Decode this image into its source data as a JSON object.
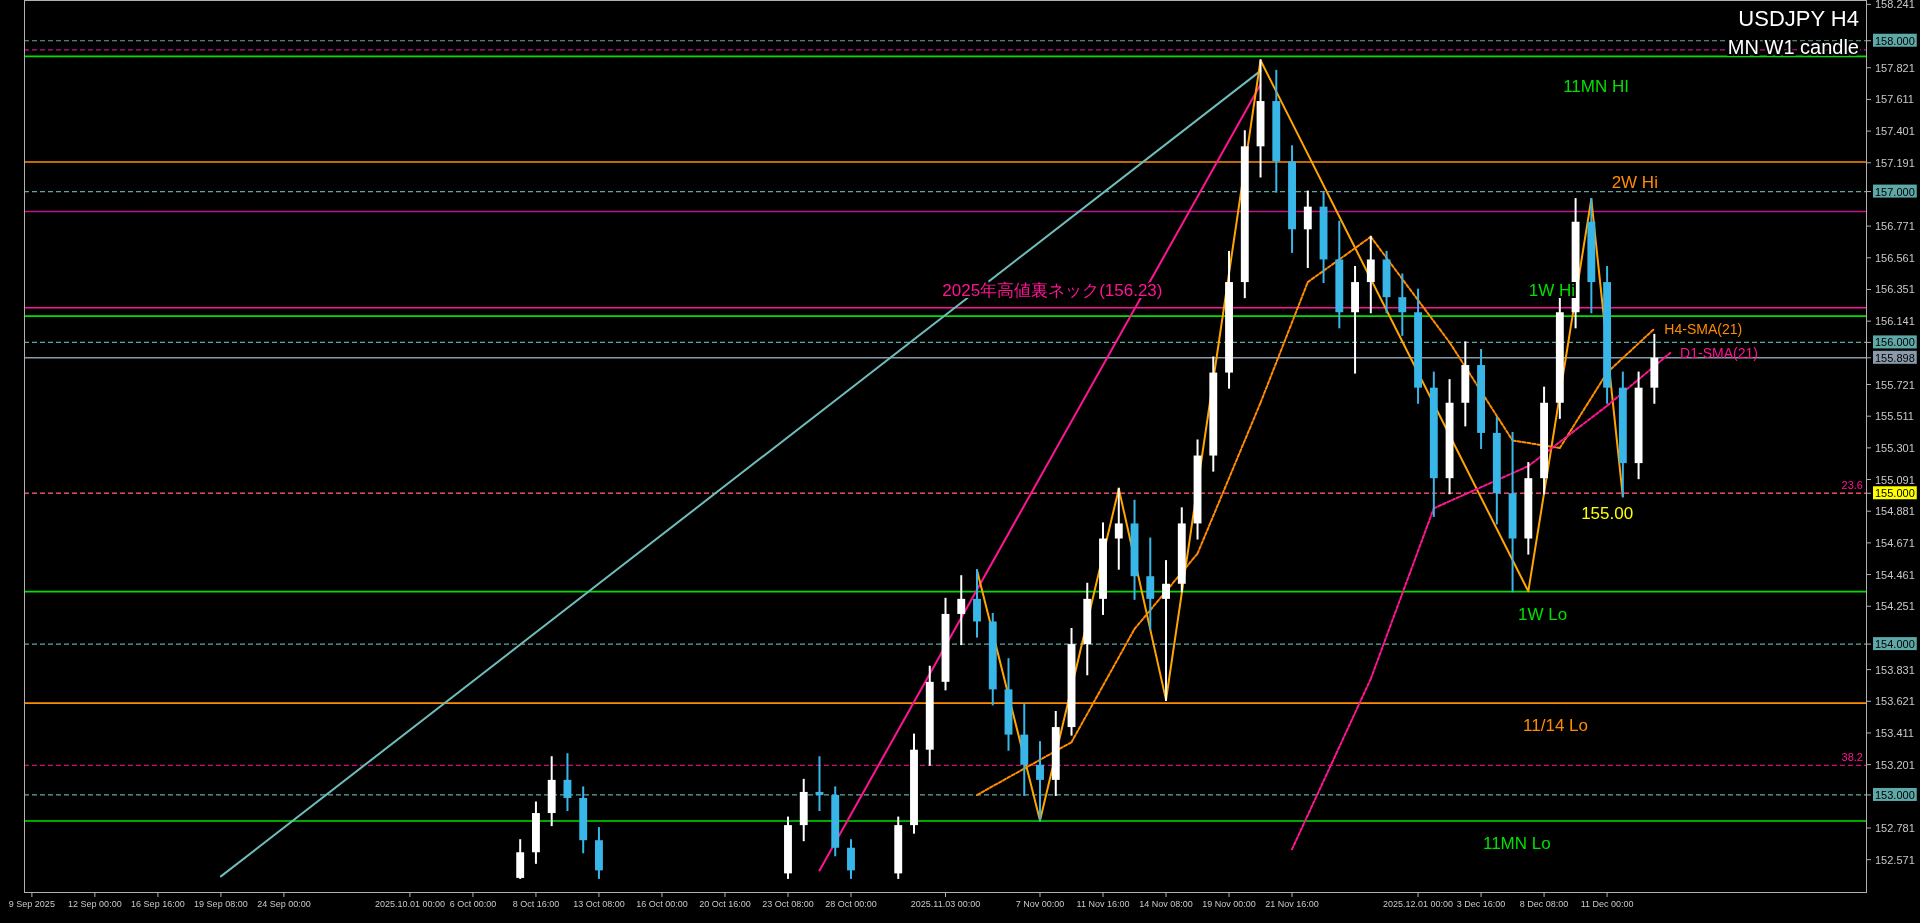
{
  "chart_data": {
    "type": "candlestick",
    "title": "USDJPY H4",
    "subtitle": "MN W1 candle",
    "categories": [
      "9 Sep 2025",
      null,
      null,
      null,
      "12 Sep 00:00",
      null,
      null,
      null,
      "16 Sep 16:00",
      null,
      null,
      null,
      "19 Sep 08:00",
      null,
      null,
      null,
      "24 Sep 00:00",
      null,
      null,
      null,
      null,
      null,
      null,
      null,
      "2025.10.01 00:00",
      null,
      null,
      null,
      "6 Oct 00:00",
      null,
      null,
      null,
      "8 Oct 16:00",
      null,
      null,
      null,
      "13 Oct 08:00",
      null,
      null,
      null,
      "16 Oct 00:00",
      null,
      null,
      null,
      "20 Oct 16:00",
      null,
      null,
      null,
      "23 Oct 08:00",
      null,
      null,
      null,
      "28 Oct 00:00",
      null,
      null,
      null,
      null,
      null,
      "2025.11.03 00:00",
      null,
      null,
      null,
      null,
      null,
      "7 Nov 00:00",
      null,
      null,
      null,
      "11 Nov 16:00",
      null,
      null,
      null,
      "14 Nov 08:00",
      null,
      null,
      null,
      "19 Nov 00:00",
      null,
      null,
      null,
      "21 Nov 16:00",
      null,
      null,
      null,
      null,
      null,
      null,
      null,
      "2025.12.01 00:00",
      null,
      null,
      null,
      "3 Dec 16:00",
      null,
      null,
      null,
      "8 Dec 08:00",
      null,
      null,
      null,
      "11 Dec 00:00",
      null,
      null,
      null,
      null,
      null,
      null,
      null,
      null,
      null,
      null,
      null,
      null,
      null,
      null,
      null,
      null
    ],
    "ohlc": [
      null,
      null,
      null,
      null,
      null,
      null,
      null,
      null,
      null,
      null,
      null,
      null,
      null,
      null,
      null,
      null,
      null,
      null,
      null,
      null,
      null,
      null,
      null,
      null,
      null,
      null,
      null,
      null,
      null,
      null,
      null,
      [
        152.45,
        152.7,
        152.45,
        152.62
      ],
      [
        152.62,
        152.95,
        152.55,
        152.88
      ],
      [
        152.88,
        153.25,
        152.8,
        153.1
      ],
      [
        153.1,
        153.27,
        152.9,
        152.98
      ],
      [
        152.98,
        153.05,
        152.62,
        152.7
      ],
      [
        152.7,
        152.78,
        152.45,
        152.5
      ],
      null,
      null,
      null,
      null,
      null,
      null,
      null,
      null,
      null,
      null,
      null,
      [
        152.48,
        152.85,
        152.45,
        152.8
      ],
      [
        152.8,
        153.1,
        152.7,
        153.02
      ],
      [
        153.02,
        153.25,
        152.9,
        153.0
      ],
      [
        153.0,
        153.05,
        152.6,
        152.65
      ],
      [
        152.65,
        152.7,
        152.45,
        152.5
      ],
      null,
      null,
      [
        152.48,
        152.85,
        152.45,
        152.8
      ],
      [
        152.8,
        153.4,
        152.75,
        153.3
      ],
      [
        153.3,
        153.85,
        153.2,
        153.75
      ],
      [
        153.75,
        154.3,
        153.7,
        154.2
      ],
      [
        154.2,
        154.45,
        154.0,
        154.3
      ],
      [
        154.3,
        154.49,
        154.05,
        154.15
      ],
      [
        154.15,
        154.2,
        153.6,
        153.7
      ],
      [
        153.7,
        153.9,
        153.3,
        153.4
      ],
      [
        153.4,
        153.6,
        153.0,
        153.2
      ],
      [
        153.2,
        153.35,
        152.83,
        153.1
      ],
      [
        153.1,
        153.55,
        153.0,
        153.45
      ],
      [
        153.45,
        154.1,
        153.4,
        154.0
      ],
      [
        154.0,
        154.4,
        153.8,
        154.3
      ],
      [
        154.3,
        154.8,
        154.2,
        154.7
      ],
      [
        154.7,
        155.03,
        154.5,
        154.8
      ],
      [
        154.8,
        154.95,
        154.3,
        154.45
      ],
      [
        154.45,
        154.7,
        154.1,
        154.3
      ],
      [
        154.3,
        154.55,
        153.63,
        154.4
      ],
      [
        154.4,
        154.9,
        154.35,
        154.8
      ],
      [
        154.8,
        155.35,
        154.7,
        155.25
      ],
      [
        155.25,
        155.9,
        155.15,
        155.8
      ],
      [
        155.8,
        156.6,
        155.7,
        156.4
      ],
      [
        156.4,
        157.4,
        156.3,
        157.3
      ],
      [
        157.3,
        157.87,
        157.1,
        157.6
      ],
      [
        157.6,
        157.8,
        157.0,
        157.2
      ],
      [
        157.2,
        157.3,
        156.6,
        156.75
      ],
      [
        156.75,
        157.0,
        156.5,
        156.9
      ],
      [
        156.9,
        156.99,
        156.4,
        156.55
      ],
      [
        156.55,
        156.8,
        156.1,
        156.2
      ],
      [
        156.2,
        156.5,
        155.8,
        156.4
      ],
      [
        156.4,
        156.7,
        156.2,
        156.55
      ],
      [
        156.55,
        156.6,
        156.2,
        156.3
      ],
      [
        156.3,
        156.45,
        156.05,
        156.2
      ],
      [
        156.2,
        156.35,
        155.6,
        155.7
      ],
      [
        155.7,
        155.8,
        154.85,
        155.1
      ],
      [
        155.1,
        155.75,
        155.0,
        155.6
      ],
      [
        155.6,
        156.0,
        155.45,
        155.85
      ],
      [
        155.85,
        155.95,
        155.3,
        155.4
      ],
      [
        155.4,
        155.5,
        154.8,
        155.0
      ],
      [
        155.0,
        155.4,
        154.35,
        154.7
      ],
      [
        154.7,
        155.2,
        154.6,
        155.1
      ],
      [
        155.1,
        155.7,
        155.0,
        155.6
      ],
      [
        155.6,
        156.3,
        155.5,
        156.2
      ],
      [
        156.2,
        156.95,
        156.1,
        156.8
      ],
      [
        156.8,
        156.95,
        156.2,
        156.4
      ],
      [
        156.4,
        156.5,
        155.6,
        155.7
      ],
      [
        155.7,
        155.8,
        154.98,
        155.2
      ],
      [
        155.2,
        155.8,
        155.1,
        155.7
      ],
      [
        155.7,
        156.05,
        155.6,
        155.898
      ],
      null,
      null,
      null,
      null,
      null,
      null,
      null,
      null,
      null,
      null,
      null,
      null,
      null
    ],
    "series": [
      {
        "type": "line",
        "color": "#6fbcbc",
        "line_style": "solid",
        "values": [
          null,
          null,
          null,
          null,
          null,
          null,
          null,
          null,
          null,
          null,
          null,
          null,
          152.46,
          null,
          null,
          null,
          null,
          null,
          null,
          null,
          null,
          null,
          null,
          null,
          null,
          null,
          null,
          null,
          null,
          null,
          null,
          null,
          null,
          null,
          null,
          null,
          null,
          null,
          null,
          null,
          null,
          null,
          null,
          null,
          null,
          null,
          null,
          null,
          null,
          null,
          null,
          null,
          null,
          null,
          null,
          null,
          null,
          null,
          null,
          null,
          null,
          null,
          null,
          null,
          null,
          null,
          null,
          null,
          null,
          null,
          null,
          null,
          null,
          null,
          null,
          null,
          null,
          null,
          157.8,
          null,
          null,
          null,
          null,
          null,
          null,
          null,
          null,
          null,
          null,
          null,
          null,
          null,
          null,
          null,
          null,
          null,
          null,
          null,
          null,
          null,
          null,
          null,
          null,
          null,
          null,
          null,
          null,
          null,
          null,
          null,
          null,
          null,
          null,
          null,
          null,
          null,
          null
        ]
      },
      {
        "type": "line",
        "color": "#ff1493",
        "line_style": "solid",
        "values": [
          null,
          null,
          null,
          null,
          null,
          null,
          null,
          null,
          null,
          null,
          null,
          null,
          null,
          null,
          null,
          null,
          null,
          null,
          null,
          null,
          null,
          null,
          null,
          null,
          null,
          null,
          null,
          null,
          null,
          null,
          null,
          null,
          null,
          null,
          null,
          null,
          null,
          null,
          null,
          null,
          null,
          null,
          null,
          null,
          null,
          null,
          null,
          null,
          null,
          null,
          152.5,
          null,
          null,
          null,
          null,
          null,
          null,
          null,
          null,
          null,
          null,
          null,
          null,
          null,
          null,
          null,
          null,
          null,
          null,
          null,
          null,
          null,
          null,
          null,
          null,
          null,
          null,
          null,
          157.71,
          null,
          null,
          null,
          null,
          null,
          null,
          null,
          null,
          null,
          null,
          null,
          null,
          null,
          null,
          null,
          null,
          null,
          null,
          null,
          null,
          null,
          null,
          null,
          null,
          null,
          null,
          null,
          null,
          null,
          null,
          null,
          null,
          null,
          null,
          null,
          null,
          null,
          null
        ]
      },
      {
        "type": "line",
        "color": "#ffa500",
        "line_style": "solid",
        "values": [
          null,
          null,
          null,
          null,
          null,
          null,
          null,
          null,
          null,
          null,
          null,
          null,
          null,
          null,
          null,
          null,
          null,
          null,
          null,
          null,
          null,
          null,
          null,
          null,
          null,
          null,
          null,
          null,
          null,
          null,
          null,
          null,
          null,
          null,
          null,
          null,
          null,
          null,
          null,
          null,
          null,
          null,
          null,
          null,
          null,
          null,
          null,
          null,
          null,
          null,
          null,
          null,
          null,
          null,
          null,
          null,
          null,
          null,
          null,
          null,
          154.49,
          null,
          null,
          null,
          152.83,
          null,
          null,
          null,
          null,
          155.03,
          null,
          null,
          153.63,
          null,
          null,
          null,
          null,
          null,
          157.87,
          null,
          null,
          null,
          null,
          null,
          null,
          null,
          null,
          null,
          null,
          null,
          null,
          null,
          null,
          null,
          null,
          154.35,
          null,
          null,
          null,
          156.95,
          null,
          154.98,
          null,
          null,
          null,
          null,
          null,
          null,
          null,
          null,
          null,
          null,
          null,
          null,
          null,
          null,
          null
        ]
      },
      {
        "type": "line",
        "name": "H4-SMA(21)",
        "color": "#ff8c00",
        "line_style": "dotted",
        "values": [
          null,
          null,
          null,
          null,
          null,
          null,
          null,
          null,
          null,
          null,
          null,
          null,
          null,
          null,
          null,
          null,
          null,
          null,
          null,
          null,
          null,
          null,
          null,
          null,
          null,
          null,
          null,
          null,
          null,
          null,
          null,
          null,
          null,
          null,
          null,
          null,
          null,
          null,
          null,
          null,
          null,
          null,
          null,
          null,
          null,
          null,
          null,
          null,
          null,
          null,
          null,
          null,
          null,
          null,
          null,
          null,
          null,
          null,
          null,
          null,
          153.0,
          null,
          null,
          null,
          null,
          null,
          153.35,
          null,
          null,
          null,
          154.1,
          null,
          null,
          null,
          154.6,
          null,
          null,
          null,
          155.6,
          null,
          null,
          156.4,
          null,
          null,
          null,
          156.7,
          null,
          null,
          null,
          null,
          156.0,
          null,
          null,
          null,
          155.35,
          null,
          null,
          155.3,
          null,
          null,
          155.8,
          null,
          null,
          156.09,
          null,
          null,
          null,
          null,
          null,
          null,
          null,
          null,
          null,
          null,
          null,
          null,
          null
        ]
      },
      {
        "type": "line",
        "name": "D1-SMA(21)",
        "color": "#ff1493",
        "line_style": "dotted",
        "values": [
          null,
          null,
          null,
          null,
          null,
          null,
          null,
          null,
          null,
          null,
          null,
          null,
          null,
          null,
          null,
          null,
          null,
          null,
          null,
          null,
          null,
          null,
          null,
          null,
          null,
          null,
          null,
          null,
          null,
          null,
          null,
          null,
          null,
          null,
          null,
          null,
          null,
          null,
          null,
          null,
          null,
          null,
          null,
          null,
          null,
          null,
          null,
          null,
          null,
          null,
          null,
          null,
          null,
          null,
          null,
          null,
          null,
          null,
          null,
          null,
          null,
          null,
          null,
          null,
          null,
          null,
          null,
          null,
          null,
          null,
          null,
          null,
          null,
          null,
          null,
          null,
          null,
          null,
          null,
          null,
          152.64,
          null,
          null,
          null,
          null,
          153.77,
          null,
          null,
          null,
          154.9,
          null,
          null,
          null,
          null,
          null,
          155.18,
          null,
          null,
          null,
          null,
          155.58,
          null,
          null,
          null,
          155.93,
          null,
          null,
          null,
          null,
          null,
          null,
          null,
          null,
          null,
          null,
          null,
          null
        ]
      }
    ],
    "ylim": [
      152.35,
      158.27
    ],
    "yticks": [
      158.241,
      {
        "value": 158.0,
        "label": "158.000"
      },
      157.821,
      157.611,
      157.401,
      157.191,
      {
        "value": 157.0,
        "label": "157.000"
      },
      156.771,
      156.561,
      156.351,
      156.141,
      {
        "value": 156.0,
        "label": "156.000"
      },
      {
        "value": 155.898,
        "label": "155.898"
      },
      155.721,
      155.511,
      155.301,
      155.091,
      {
        "value": 155.0,
        "label": "155.000"
      },
      154.881,
      154.671,
      154.461,
      154.251,
      {
        "value": 154.0,
        "label": "154.000"
      },
      153.831,
      153.621,
      153.411,
      153.201,
      {
        "value": 153.0,
        "label": "153.000"
      },
      152.781,
      152.571
    ],
    "ref_lines": [
      {
        "axis": "y",
        "value": 158.0,
        "color": "#5fa8a8",
        "line_style": "dashed"
      },
      {
        "axis": "y",
        "value": 157.0,
        "color": "#5fa8a8",
        "line_style": "dashed"
      },
      {
        "axis": "y",
        "value": 156.0,
        "color": "#5fa8a8",
        "line_style": "dashed"
      },
      {
        "axis": "y",
        "value": 155.898,
        "color": "#8a9aaa",
        "line_style": "solid"
      },
      {
        "axis": "y",
        "value": 155.0,
        "color": "#ffff00",
        "line_style": "dashed",
        "label": "155.00"
      },
      {
        "axis": "y",
        "value": 154.0,
        "color": "#5fa8a8",
        "line_style": "dashed"
      },
      {
        "axis": "y",
        "value": 153.0,
        "color": "#5fa8a8",
        "line_style": "dashed"
      },
      {
        "axis": "y",
        "value": 157.896,
        "color": "#00e000",
        "line_style": "solid",
        "label": "11MN HI"
      },
      {
        "axis": "y",
        "value": 157.196,
        "color": "#ff8c00",
        "line_style": "solid",
        "label": "2W Hi"
      },
      {
        "axis": "y",
        "value": 156.174,
        "color": "#00e000",
        "line_style": "solid",
        "label": "1W Hi"
      },
      {
        "axis": "y",
        "value": 156.23,
        "color": "#ff1493",
        "line_style": "solid",
        "label": "2025年高値裏ネック(156.23)"
      },
      {
        "axis": "y",
        "value": 154.348,
        "color": "#00e000",
        "line_style": "solid",
        "label": "1W Lo"
      },
      {
        "axis": "y",
        "value": 153.609,
        "color": "#ff8c00",
        "line_style": "solid",
        "label": "11/14 Lo"
      },
      {
        "axis": "y",
        "value": 152.827,
        "color": "#00e000",
        "line_style": "solid",
        "label": "11MN Lo"
      },
      {
        "axis": "y",
        "value": 153.197,
        "color": "#ff1493",
        "line_style": "dashed"
      },
      {
        "axis": "y",
        "value": 155.0,
        "color": "#ff1493",
        "line_style": "dashed"
      },
      {
        "axis": "y",
        "value": 156.868,
        "color": "#c0168a",
        "line_style": "solid"
      },
      {
        "axis": "y",
        "value": 157.94,
        "color": "#c0168a",
        "line_style": "dashed"
      }
    ],
    "annotations": [
      {
        "text": "23.6",
        "y": 155.0
      },
      {
        "text": "38.2",
        "y": 153.197
      }
    ],
    "grid": false
  }
}
